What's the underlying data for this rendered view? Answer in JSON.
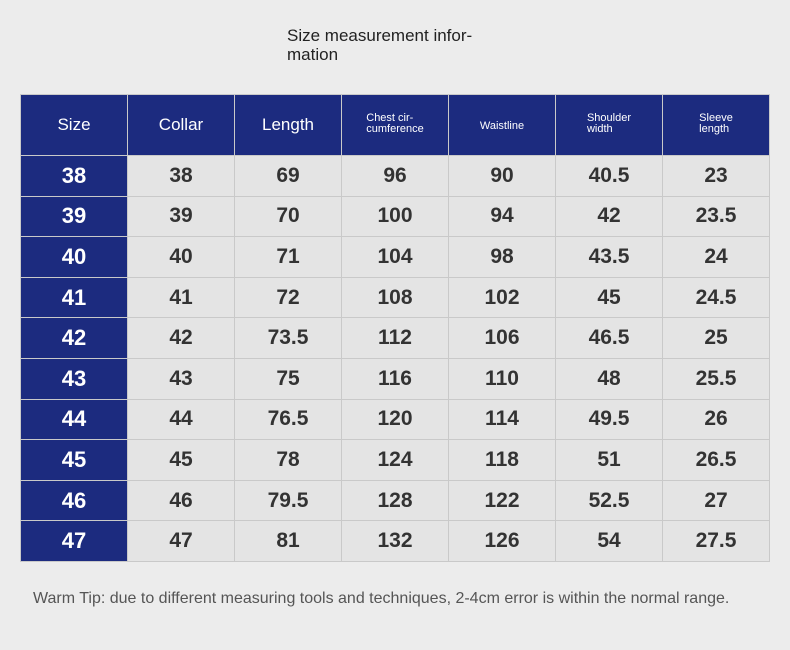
{
  "header": {
    "title_lines": [
      "Size measurement infor-",
      "mation"
    ]
  },
  "table": {
    "columns": [
      [
        "Size"
      ],
      [
        "Collar"
      ],
      [
        "Length"
      ],
      [
        "Chest cir-",
        "cumference"
      ],
      [
        "Waistline"
      ],
      [
        "Shoulder",
        "width"
      ],
      [
        "Sleeve",
        "length"
      ]
    ],
    "rows": [
      [
        38,
        38,
        69,
        96,
        90,
        40.5,
        23
      ],
      [
        39,
        39,
        70,
        100,
        94,
        42,
        23.5
      ],
      [
        40,
        40,
        71,
        104,
        98,
        43.5,
        24
      ],
      [
        41,
        41,
        72,
        108,
        102,
        45,
        24.5
      ],
      [
        42,
        42,
        73.5,
        112,
        106,
        46.5,
        25
      ],
      [
        43,
        43,
        75,
        116,
        110,
        48,
        25.5
      ],
      [
        44,
        44,
        76.5,
        120,
        114,
        49.5,
        26
      ],
      [
        45,
        45,
        78,
        124,
        118,
        51,
        26.5
      ],
      [
        46,
        46,
        79.5,
        128,
        122,
        52.5,
        27
      ],
      [
        47,
        47,
        81,
        132,
        126,
        54,
        27.5
      ]
    ]
  },
  "footer": {
    "tip": "Warm Tip: due to different measuring tools and techniques, 2-4cm error is within the normal range."
  }
}
